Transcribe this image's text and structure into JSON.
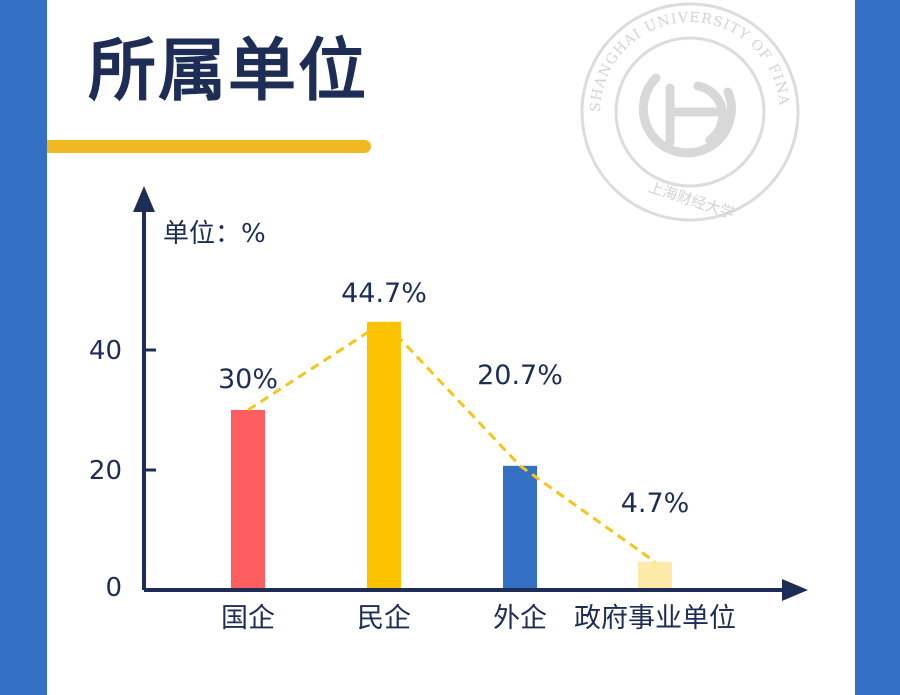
{
  "page": {
    "title": "所属单位",
    "seal_text": "SHANGHAI UNIVERSITY OF FINANCE AND ECONOMICS",
    "seal_cn": "上海财经大学"
  },
  "colors": {
    "background": "#3470c4",
    "title": "#1e2d55",
    "accent": "#f0b91f",
    "axis": "#1e2d55",
    "trend_line": "#f5c518"
  },
  "chart_data": {
    "type": "bar",
    "title": "",
    "xlabel": "",
    "ylabel": "单位：%",
    "ylim": [
      0,
      60
    ],
    "yticks": [
      0,
      20,
      40
    ],
    "categories": [
      "国企",
      "民企",
      "外企",
      "政府事业单位"
    ],
    "values": [
      30,
      44.7,
      20.7,
      4.7
    ],
    "data_labels": [
      "30%",
      "44.7%",
      "20.7%",
      "4.7%"
    ],
    "bar_colors": [
      "#fe5e60",
      "#fcc200",
      "#3470c4",
      "#fdeaa8"
    ],
    "trend_line": true,
    "grid": false
  }
}
